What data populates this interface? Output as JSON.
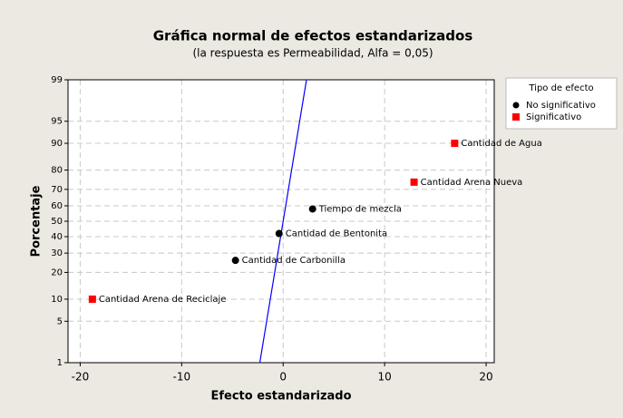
{
  "chart_data": {
    "type": "normal_probability",
    "title": "Gráfica normal de efectos estandarizados",
    "subtitle": "(la respuesta es Permeabilidad, Alfa =  0,05)",
    "x_label": "Efecto estandarizado",
    "y_label": "Porcentaje",
    "yscale": "normal",
    "xlim": [
      -21.2,
      20.8
    ],
    "xticks": [
      -20,
      -10,
      0,
      10,
      20
    ],
    "ylim": [
      1,
      99
    ],
    "yticks": [
      1,
      5,
      10,
      20,
      30,
      40,
      50,
      60,
      70,
      80,
      90,
      95,
      99
    ],
    "grid": true,
    "legend_title": "Tipo de efecto",
    "legend": "right",
    "series": [
      {
        "name": "No significativo",
        "color": "#000000",
        "marker": "circle",
        "x": [
          -4.7,
          -0.4,
          2.9
        ],
        "values": [
          26,
          42,
          58
        ],
        "labels": [
          "Cantidad de Carbonilla",
          "Cantidad de Bentonita",
          "Tiempo de mezcla"
        ]
      },
      {
        "name": "Significativo",
        "color": "#ff0000",
        "marker": "square",
        "x": [
          -18.8,
          12.9,
          16.9
        ],
        "values": [
          10,
          74,
          90
        ],
        "labels": [
          "Cantidad Arena de Reciclaje",
          "Cantidad Arena Nueva",
          "Cantidad de Agua"
        ]
      }
    ],
    "reference_line": {
      "color": "#0000ff",
      "x": [
        -2.3,
        2.3
      ],
      "values": [
        1,
        99
      ]
    }
  }
}
